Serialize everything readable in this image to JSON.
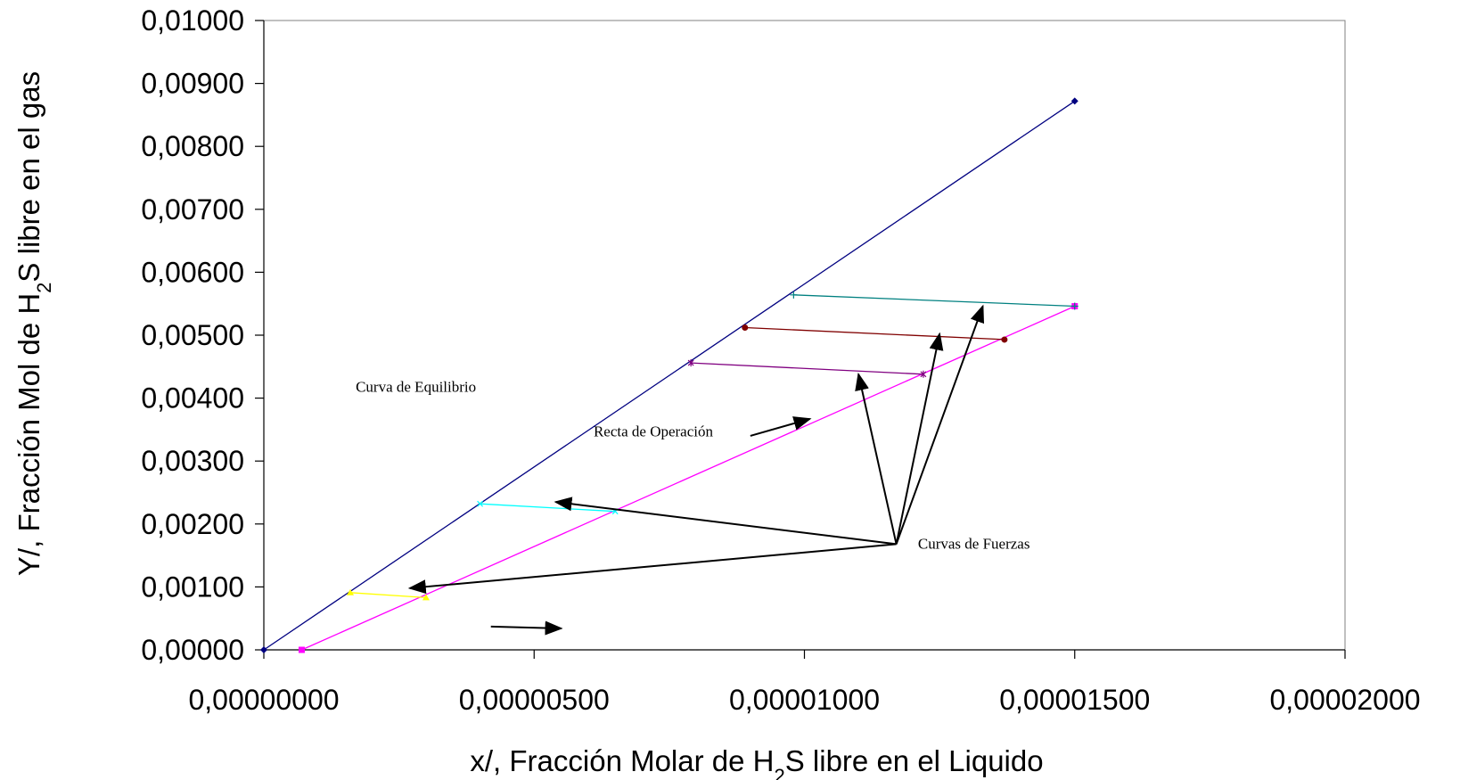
{
  "chart_data": {
    "type": "line",
    "xlabel": {
      "pre": "x/, Fracción Molar de H",
      "sub": "2",
      "post": "S libre en el Liquido"
    },
    "ylabel": {
      "pre": "Y/, Fracción Mol de H",
      "sub": "2",
      "post": "S libre en el gas"
    },
    "xlim": [
      0,
      2e-05
    ],
    "ylim": [
      0,
      0.01
    ],
    "x_ticks": [
      0,
      5e-06,
      1e-05,
      1.5e-05,
      2e-05
    ],
    "x_tick_labels": [
      "0,00000000",
      "0,00000500",
      "0,00001000",
      "0,00001500",
      "0,00002000"
    ],
    "y_ticks": [
      0,
      0.001,
      0.002,
      0.003,
      0.004,
      0.005,
      0.006,
      0.007,
      0.008,
      0.009,
      0.01
    ],
    "y_tick_labels": [
      "0,00000",
      "0,00100",
      "0,00200",
      "0,00300",
      "0,00400",
      "0,00500",
      "0,00600",
      "0,00700",
      "0,00800",
      "0,00900",
      "0,01000"
    ],
    "grid": false,
    "series": [
      {
        "name": "Curva de Equilibrio",
        "color": "#000080",
        "marker": "diamond",
        "x": [
          0,
          1.5e-05
        ],
        "y": [
          0,
          0.00872
        ]
      },
      {
        "name": "Recta de Operación",
        "color": "#ff00ff",
        "marker": "square",
        "x": [
          7e-07,
          1.5e-05
        ],
        "y": [
          0,
          0.00546
        ]
      },
      {
        "color": "#ffff00",
        "marker": "triangle",
        "x": [
          1.6e-06,
          3e-06
        ],
        "y": [
          0.00091,
          0.00083
        ]
      },
      {
        "color": "#00ffff",
        "marker": "x",
        "x": [
          4e-06,
          6.5e-06
        ],
        "y": [
          0.00232,
          0.0022
        ]
      },
      {
        "color": "#800080",
        "marker": "star",
        "x": [
          7.9e-06,
          1.22e-05
        ],
        "y": [
          0.00456,
          0.00438
        ]
      },
      {
        "color": "#800000",
        "marker": "circle",
        "x": [
          8.9e-06,
          1.37e-05
        ],
        "y": [
          0.00512,
          0.00493
        ]
      },
      {
        "color": "#008080",
        "marker": "plus",
        "x": [
          9.8e-06,
          1.5e-05
        ],
        "y": [
          0.00564,
          0.00546
        ]
      }
    ],
    "annotations": [
      {
        "text": "Curva de Equilibrio",
        "label_at": [
          1.7e-06,
          0.0041
        ],
        "anchor": "start",
        "arrows": [
          {
            "from": [
              4.2e-06,
              0.00037
            ],
            "to": [
              5.5e-06,
              0.00034
            ]
          }
        ]
      },
      {
        "text": "Recta de Operación",
        "label_at": [
          6.1e-06,
          0.00339
        ],
        "anchor": "start",
        "arrows": [
          {
            "from": [
              9e-06,
              0.0034
            ],
            "to": [
              1.01e-05,
              0.00367
            ]
          }
        ]
      },
      {
        "text": "Curvas de Fuerzas",
        "label_at": [
          1.21e-05,
          0.00161
        ],
        "anchor": "start",
        "arrows": [
          {
            "from": [
              1.17e-05,
              0.00168
            ],
            "to": [
              2.7e-06,
              0.00098
            ]
          },
          {
            "from": [
              1.17e-05,
              0.00168
            ],
            "to": [
              5.4e-06,
              0.00235
            ]
          },
          {
            "from": [
              1.17e-05,
              0.00168
            ],
            "to": [
              1.1e-05,
              0.00438
            ]
          },
          {
            "from": [
              1.17e-05,
              0.00168
            ],
            "to": [
              1.25e-05,
              0.00502
            ]
          },
          {
            "from": [
              1.17e-05,
              0.00168
            ],
            "to": [
              1.33e-05,
              0.00546
            ]
          }
        ]
      }
    ]
  }
}
